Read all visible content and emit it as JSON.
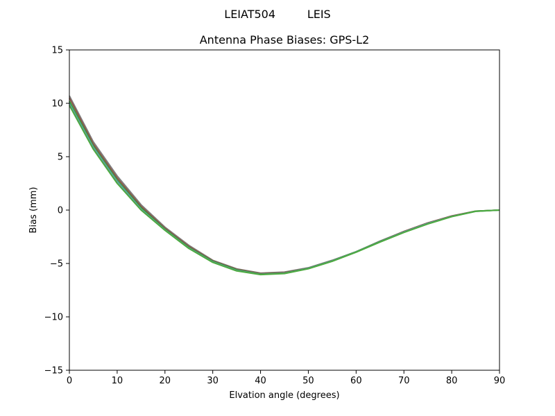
{
  "suptitle": "LEIAT504         LEIS",
  "chart_data": {
    "type": "line",
    "title": "Antenna Phase Biases: GPS-L2",
    "xlabel": "Elvation angle (degrees)",
    "ylabel": "Bias (mm)",
    "xlim": [
      0,
      90
    ],
    "ylim": [
      -15,
      15
    ],
    "xticks": [
      0,
      10,
      20,
      30,
      40,
      50,
      60,
      70,
      80,
      90
    ],
    "yticks": [
      -15,
      -10,
      -5,
      0,
      5,
      10,
      15
    ],
    "yticklabels": [
      "−15",
      "−10",
      "−5",
      "0",
      "5",
      "10",
      "15"
    ],
    "grid": false,
    "x": [
      0,
      5,
      10,
      15,
      20,
      25,
      30,
      35,
      40,
      45,
      50,
      55,
      60,
      65,
      70,
      75,
      80,
      85,
      90
    ],
    "series": [
      {
        "color": "#7f7f7f",
        "values": [
          10.7,
          6.4,
          3.2,
          0.5,
          -1.6,
          -3.3,
          -4.7,
          -5.5,
          -5.9,
          -5.8,
          -5.4,
          -4.7,
          -3.9,
          -2.9,
          -2.0,
          -1.2,
          -0.55,
          -0.1,
          0.0
        ]
      },
      {
        "color": "#8c564b",
        "values": [
          10.5,
          6.2,
          3.0,
          0.35,
          -1.7,
          -3.4,
          -4.75,
          -5.55,
          -5.95,
          -5.85,
          -5.45,
          -4.75,
          -3.9,
          -2.95,
          -2.0,
          -1.2,
          -0.55,
          -0.1,
          0.0
        ]
      },
      {
        "color": "#2ca02c",
        "values": [
          10.2,
          6.0,
          2.8,
          0.2,
          -1.8,
          -3.5,
          -4.8,
          -5.6,
          -6.0,
          -5.9,
          -5.45,
          -4.75,
          -3.9,
          -2.95,
          -2.05,
          -1.25,
          -0.6,
          -0.1,
          0.0
        ]
      },
      {
        "color": "#5f9ea0",
        "values": [
          10.0,
          5.9,
          2.7,
          0.1,
          -1.85,
          -3.55,
          -4.85,
          -5.65,
          -6.02,
          -5.92,
          -5.47,
          -4.77,
          -3.92,
          -2.97,
          -2.05,
          -1.25,
          -0.6,
          -0.12,
          0.0
        ]
      },
      {
        "color": "#4daa3f",
        "values": [
          9.8,
          5.7,
          2.5,
          0.0,
          -1.9,
          -3.6,
          -4.9,
          -5.7,
          -6.05,
          -5.95,
          -5.5,
          -4.8,
          -3.95,
          -3.0,
          -2.1,
          -1.3,
          -0.62,
          -0.12,
          0.0
        ]
      }
    ]
  }
}
